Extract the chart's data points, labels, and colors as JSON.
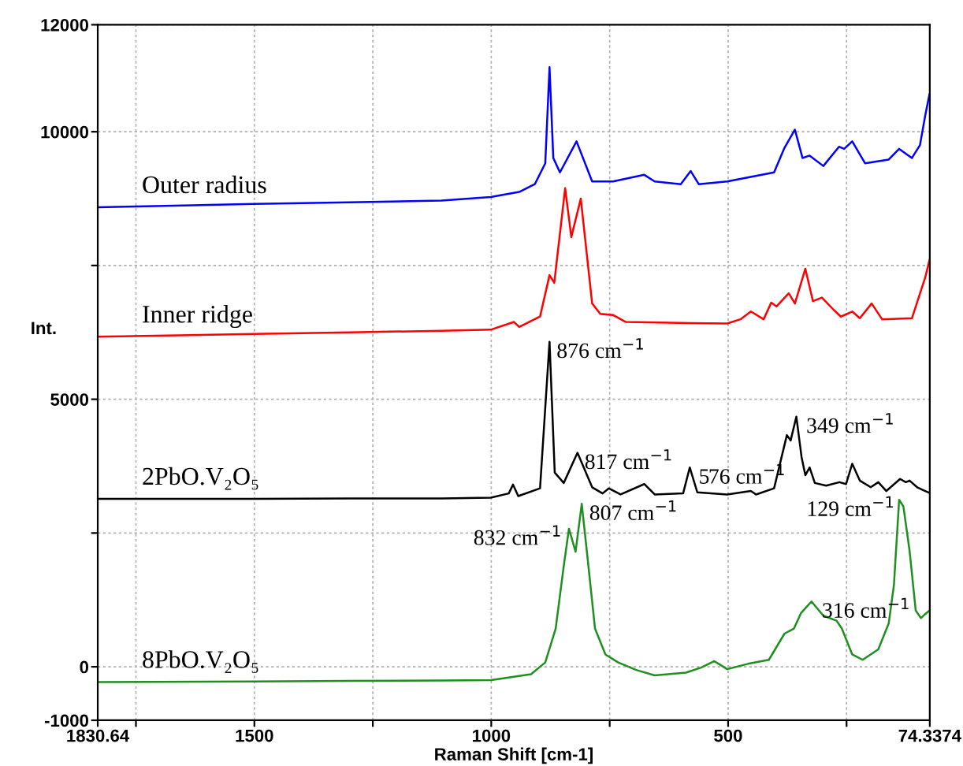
{
  "chart_data": {
    "type": "line",
    "xlabel": "Raman Shift [cm-1]",
    "ylabel": "Int.",
    "xlim": [
      1830.64,
      74.3374
    ],
    "ylim": [
      -1000,
      12000
    ],
    "xticks": [
      1830.64,
      {
        "value": 1750,
        "label": null
      },
      1500,
      {
        "value": 1250,
        "label": null
      },
      1000,
      {
        "value": 750,
        "label": null
      },
      500,
      {
        "value": 250,
        "label": null
      },
      74.3374
    ],
    "yticks": [
      -1000,
      0,
      {
        "value": 2500,
        "label": null
      },
      5000,
      {
        "value": 7500,
        "label": null
      },
      10000,
      12000
    ],
    "grid": true,
    "legend": false,
    "marker": "none",
    "line_style": "solid",
    "series": [
      {
        "name": "Outer radius",
        "color": "#0000ff",
        "x": [
          1830,
          1500,
          1300,
          1105,
          1001,
          941,
          908,
          886,
          877,
          869,
          855,
          820,
          787,
          743,
          677,
          655,
          600,
          579,
          562,
          502,
          403,
          381,
          359,
          343,
          328,
          299,
          266,
          255,
          238,
          211,
          161,
          139,
          112,
          95,
          84,
          75
        ],
        "values": [
          8590,
          8650,
          8680,
          8715,
          8780,
          8875,
          9020,
          9410,
          11205,
          9510,
          9240,
          9820,
          9070,
          9070,
          9195,
          9070,
          9020,
          9265,
          9020,
          9070,
          9240,
          9700,
          10040,
          9510,
          9555,
          9360,
          9720,
          9680,
          9820,
          9410,
          9480,
          9680,
          9510,
          9750,
          10300,
          10700
        ]
      },
      {
        "name": "Inner ridge",
        "color": "#ff0000",
        "x": [
          1830,
          1500,
          1300,
          1105,
          1001,
          952,
          941,
          897,
          877,
          867,
          844,
          831,
          811,
          787,
          770,
          743,
          716,
          579,
          502,
          474,
          452,
          425,
          409,
          398,
          372,
          359,
          337,
          321,
          302,
          277,
          262,
          238,
          222,
          197,
          175,
          112,
          84,
          75
        ],
        "values": [
          6170,
          6220,
          6250,
          6280,
          6300,
          6445,
          6350,
          6545,
          7320,
          7175,
          8945,
          8030,
          8750,
          6790,
          6595,
          6575,
          6445,
          6425,
          6415,
          6495,
          6640,
          6495,
          6805,
          6735,
          6980,
          6790,
          7440,
          6835,
          6900,
          6670,
          6545,
          6640,
          6515,
          6790,
          6495,
          6515,
          7275,
          7600
        ]
      },
      {
        "name": "2PbO.V₂O₅",
        "color": "#000000",
        "x": [
          1830,
          1500,
          1300,
          1105,
          1001,
          963,
          954,
          943,
          897,
          877,
          866,
          847,
          818,
          787,
          765,
          752,
          727,
          677,
          655,
          595,
          581,
          565,
          502,
          452,
          441,
          403,
          376,
          368,
          356,
          345,
          337,
          328,
          317,
          293,
          265,
          251,
          238,
          222,
          199,
          183,
          166,
          137,
          125,
          117,
          101,
          84,
          75
        ],
        "values": [
          3140,
          3140,
          3145,
          3145,
          3160,
          3240,
          3405,
          3190,
          3335,
          6075,
          3630,
          3435,
          4000,
          3355,
          3240,
          3335,
          3220,
          3415,
          3220,
          3240,
          3725,
          3260,
          3220,
          3285,
          3220,
          3335,
          4330,
          4230,
          4675,
          3920,
          3580,
          3725,
          3435,
          3385,
          3450,
          3415,
          3795,
          3480,
          3355,
          3450,
          3285,
          3510,
          3450,
          3480,
          3355,
          3285,
          3250
        ]
      },
      {
        "name": "8PbO.V₂O₅",
        "color": "#1f8f1f",
        "x": [
          1830,
          1500,
          1300,
          1105,
          1000,
          916,
          886,
          864,
          847,
          836,
          822,
          809,
          796,
          781,
          759,
          732,
          694,
          655,
          589,
          557,
          529,
          502,
          458,
          414,
          381,
          361,
          346,
          324,
          299,
          271,
          260,
          238,
          216,
          183,
          161,
          150,
          139,
          130,
          117,
          104,
          93,
          84,
          75
        ],
        "values": [
          -285,
          -275,
          -265,
          -255,
          -250,
          -140,
          80,
          715,
          1880,
          2580,
          2150,
          3045,
          1975,
          715,
          230,
          80,
          -60,
          -160,
          -110,
          -15,
          105,
          -45,
          55,
          130,
          620,
          715,
          1005,
          1220,
          955,
          860,
          715,
          230,
          130,
          325,
          810,
          1530,
          3120,
          2995,
          2170,
          1050,
          910,
          985,
          1050
        ]
      }
    ],
    "annotations": [
      {
        "text": "876 cm$^{−1}$",
        "x": 876,
        "y": 6075
      },
      {
        "text": "817 cm$^{−1}$",
        "x": 817,
        "y": 4000
      },
      {
        "text": "576 cm$^{−1}$",
        "x": 576,
        "y": 3725
      },
      {
        "text": "349 cm$^{−1}$",
        "x": 349,
        "y": 4675
      },
      {
        "text": "832 cm$^{−1}$",
        "x": 832,
        "y": 2580
      },
      {
        "text": "807 cm$^{−1}$",
        "x": 807,
        "y": 3045
      },
      {
        "text": "316 cm$^{−1}$",
        "x": 316,
        "y": 1220
      },
      {
        "text": "129 cm$^{−1}$",
        "x": 129,
        "y": 3120
      }
    ]
  }
}
